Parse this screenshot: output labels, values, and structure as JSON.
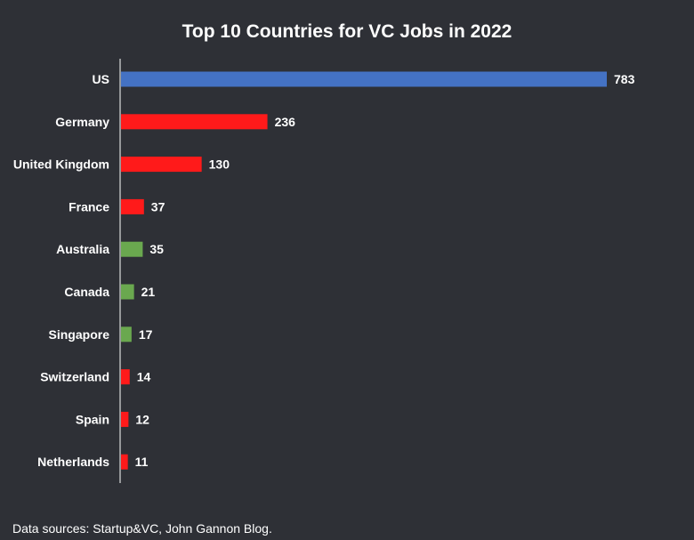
{
  "chart_data": {
    "type": "bar",
    "orientation": "horizontal",
    "title": "Top 10 Countries for VC Jobs in 2022",
    "categories": [
      "US",
      "Germany",
      "United Kingdom",
      "France",
      "Australia",
      "Canada",
      "Singapore",
      "Switzerland",
      "Spain",
      "Netherlands"
    ],
    "values": [
      783,
      236,
      130,
      37,
      35,
      21,
      17,
      14,
      12,
      11
    ],
    "colors": [
      "#4472c4",
      "#ff1a1a",
      "#ff1a1a",
      "#ff1a1a",
      "#6aa84f",
      "#6aa84f",
      "#6aa84f",
      "#ff1a1a",
      "#ff1a1a",
      "#ff1a1a"
    ],
    "xlim": [
      0,
      783
    ],
    "xlabel": "",
    "ylabel": "",
    "grid": false,
    "legend": "none"
  },
  "footer": {
    "source": "Data sources: Startup&VC, John Gannon Blog."
  }
}
